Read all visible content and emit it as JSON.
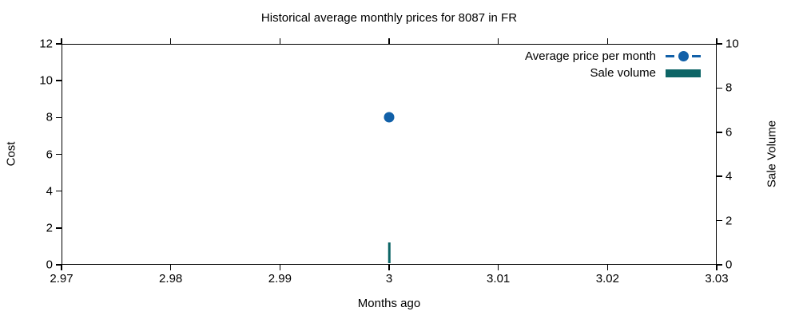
{
  "chart_data": {
    "type": "line+bar",
    "title": "Historical average monthly prices for 8087 in FR",
    "xlabel": "Months ago",
    "ylabel_left": "Cost",
    "ylabel_right": "Sale Volume",
    "xlim": [
      2.97,
      3.03
    ],
    "ylim_left": [
      0,
      12
    ],
    "ylim_right": [
      0,
      10
    ],
    "x_ticks": [
      2.97,
      2.98,
      2.99,
      3,
      3.01,
      3.02,
      3.03
    ],
    "x_tick_labels": [
      "2.97",
      "2.98",
      "2.99",
      "3",
      "3.01",
      "3.02",
      "3.03"
    ],
    "y_ticks_left": [
      0,
      2,
      4,
      6,
      8,
      10,
      12
    ],
    "y_ticks_right": [
      0,
      2,
      4,
      6,
      8,
      10
    ],
    "grid": false,
    "tick_direction": "out-mirrored-all-sides",
    "legend_position": "top-right-inside",
    "series": [
      {
        "name": "Average price per month",
        "type": "line",
        "axis": "left",
        "linestyle": "dashed",
        "marker": "filled-circle",
        "color": "#1160a8",
        "points": [
          {
            "x": 3,
            "y": 8
          }
        ]
      },
      {
        "name": "Sale volume",
        "type": "bar",
        "axis": "right",
        "color": "#0d6566",
        "points": [
          {
            "x": 3,
            "y": 1
          }
        ]
      }
    ]
  }
}
